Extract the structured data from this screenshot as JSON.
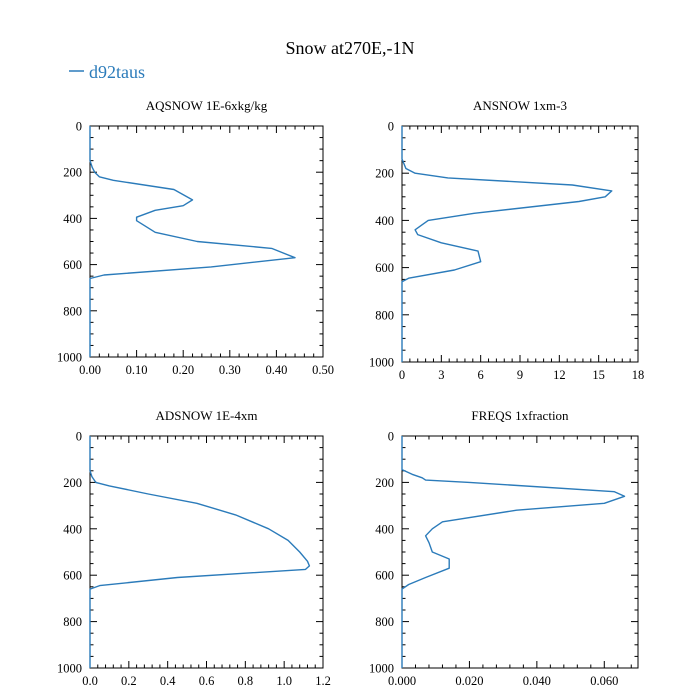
{
  "title": "Snow at270E,-1N",
  "legend": {
    "label": "d92taus",
    "color": "#2b7bba"
  },
  "colors": {
    "series": "#2b7bba",
    "axis": "#000000"
  },
  "chart_data": [
    {
      "type": "line",
      "title": "AQSNOW  1E-6xkg/kg",
      "xlabel": "",
      "ylabel": "",
      "xlim": [
        0,
        0.5
      ],
      "ylim": [
        1000,
        0
      ],
      "xticks": [
        0,
        0.1,
        0.2,
        0.3,
        0.4,
        0.5
      ],
      "xtick_labels": [
        "0.00",
        "0.10",
        "0.20",
        "0.30",
        "0.40",
        "0.50"
      ],
      "yticks": [
        0,
        200,
        400,
        600,
        800,
        1000
      ],
      "ytick_labels": [
        "0",
        "200",
        "400",
        "600",
        "800",
        "1000"
      ],
      "series": [
        {
          "name": "d92taus",
          "x": [
            0,
            0,
            0.005,
            0.01,
            0.02,
            0.05,
            0.18,
            0.22,
            0.2,
            0.14,
            0.1,
            0.1,
            0.14,
            0.23,
            0.39,
            0.44,
            0.26,
            0.03,
            0,
            0
          ],
          "y": [
            0,
            150,
            180,
            200,
            220,
            235,
            275,
            320,
            345,
            365,
            395,
            410,
            460,
            500,
            530,
            570,
            610,
            645,
            660,
            1000
          ]
        }
      ]
    },
    {
      "type": "line",
      "title": "ANSNOW  1xm-3",
      "xlabel": "",
      "ylabel": "",
      "xlim": [
        0,
        18
      ],
      "ylim": [
        1000,
        0
      ],
      "xticks": [
        0,
        3,
        6,
        9,
        12,
        15,
        18
      ],
      "xtick_labels": [
        "0",
        "3",
        "6",
        "9",
        "12",
        "15",
        "18"
      ],
      "yticks": [
        0,
        200,
        400,
        600,
        800,
        1000
      ],
      "ytick_labels": [
        "0",
        "200",
        "400",
        "600",
        "800",
        "1000"
      ],
      "series": [
        {
          "name": "d92taus",
          "x": [
            0,
            0,
            0.3,
            1,
            3.5,
            13,
            16,
            15.5,
            13.5,
            5.5,
            2,
            1.5,
            1,
            1.2,
            3,
            5.8,
            6,
            4,
            0.5,
            0,
            0
          ],
          "y": [
            0,
            140,
            180,
            200,
            220,
            250,
            275,
            300,
            320,
            370,
            400,
            420,
            440,
            460,
            495,
            530,
            575,
            610,
            645,
            660,
            1000
          ]
        }
      ]
    },
    {
      "type": "line",
      "title": "ADSNOW  1E-4xm",
      "xlabel": "",
      "ylabel": "",
      "xlim": [
        0,
        1.2
      ],
      "ylim": [
        1000,
        0
      ],
      "xticks": [
        0,
        0.2,
        0.4,
        0.6,
        0.8,
        1.0,
        1.2
      ],
      "xtick_labels": [
        "0.0",
        "0.2",
        "0.4",
        "0.6",
        "0.8",
        "1.0",
        "1.2"
      ],
      "yticks": [
        0,
        200,
        400,
        600,
        800,
        1000
      ],
      "ytick_labels": [
        "0",
        "200",
        "400",
        "600",
        "800",
        "1000"
      ],
      "series": [
        {
          "name": "d92taus",
          "x": [
            0,
            0,
            0.01,
            0.03,
            0.1,
            0.3,
            0.55,
            0.75,
            0.92,
            1.02,
            1.08,
            1.12,
            1.13,
            1.11,
            0.45,
            0.05,
            0,
            0
          ],
          "y": [
            0,
            150,
            175,
            200,
            215,
            250,
            290,
            340,
            400,
            450,
            500,
            540,
            560,
            575,
            610,
            645,
            660,
            1000
          ]
        }
      ]
    },
    {
      "type": "line",
      "title": "FREQS  1xfraction",
      "xlabel": "",
      "ylabel": "",
      "xlim": [
        0,
        0.07
      ],
      "ylim": [
        1000,
        0
      ],
      "xticks": [
        0,
        0.02,
        0.04,
        0.06
      ],
      "xtick_labels": [
        "0.000",
        "0.020",
        "0.040",
        "0.060"
      ],
      "yticks": [
        0,
        200,
        400,
        600,
        800,
        1000
      ],
      "ytick_labels": [
        "0",
        "200",
        "400",
        "600",
        "800",
        "1000"
      ],
      "series": [
        {
          "name": "d92taus",
          "x": [
            0,
            0,
            0.003,
            0.006,
            0.007,
            0.02,
            0.063,
            0.066,
            0.06,
            0.034,
            0.012,
            0.009,
            0.007,
            0.008,
            0.009,
            0.014,
            0.014,
            0.007,
            0.002,
            0,
            0
          ],
          "y": [
            0,
            145,
            165,
            180,
            190,
            200,
            240,
            260,
            290,
            320,
            370,
            400,
            430,
            460,
            500,
            530,
            570,
            610,
            640,
            660,
            1000
          ]
        }
      ]
    }
  ]
}
